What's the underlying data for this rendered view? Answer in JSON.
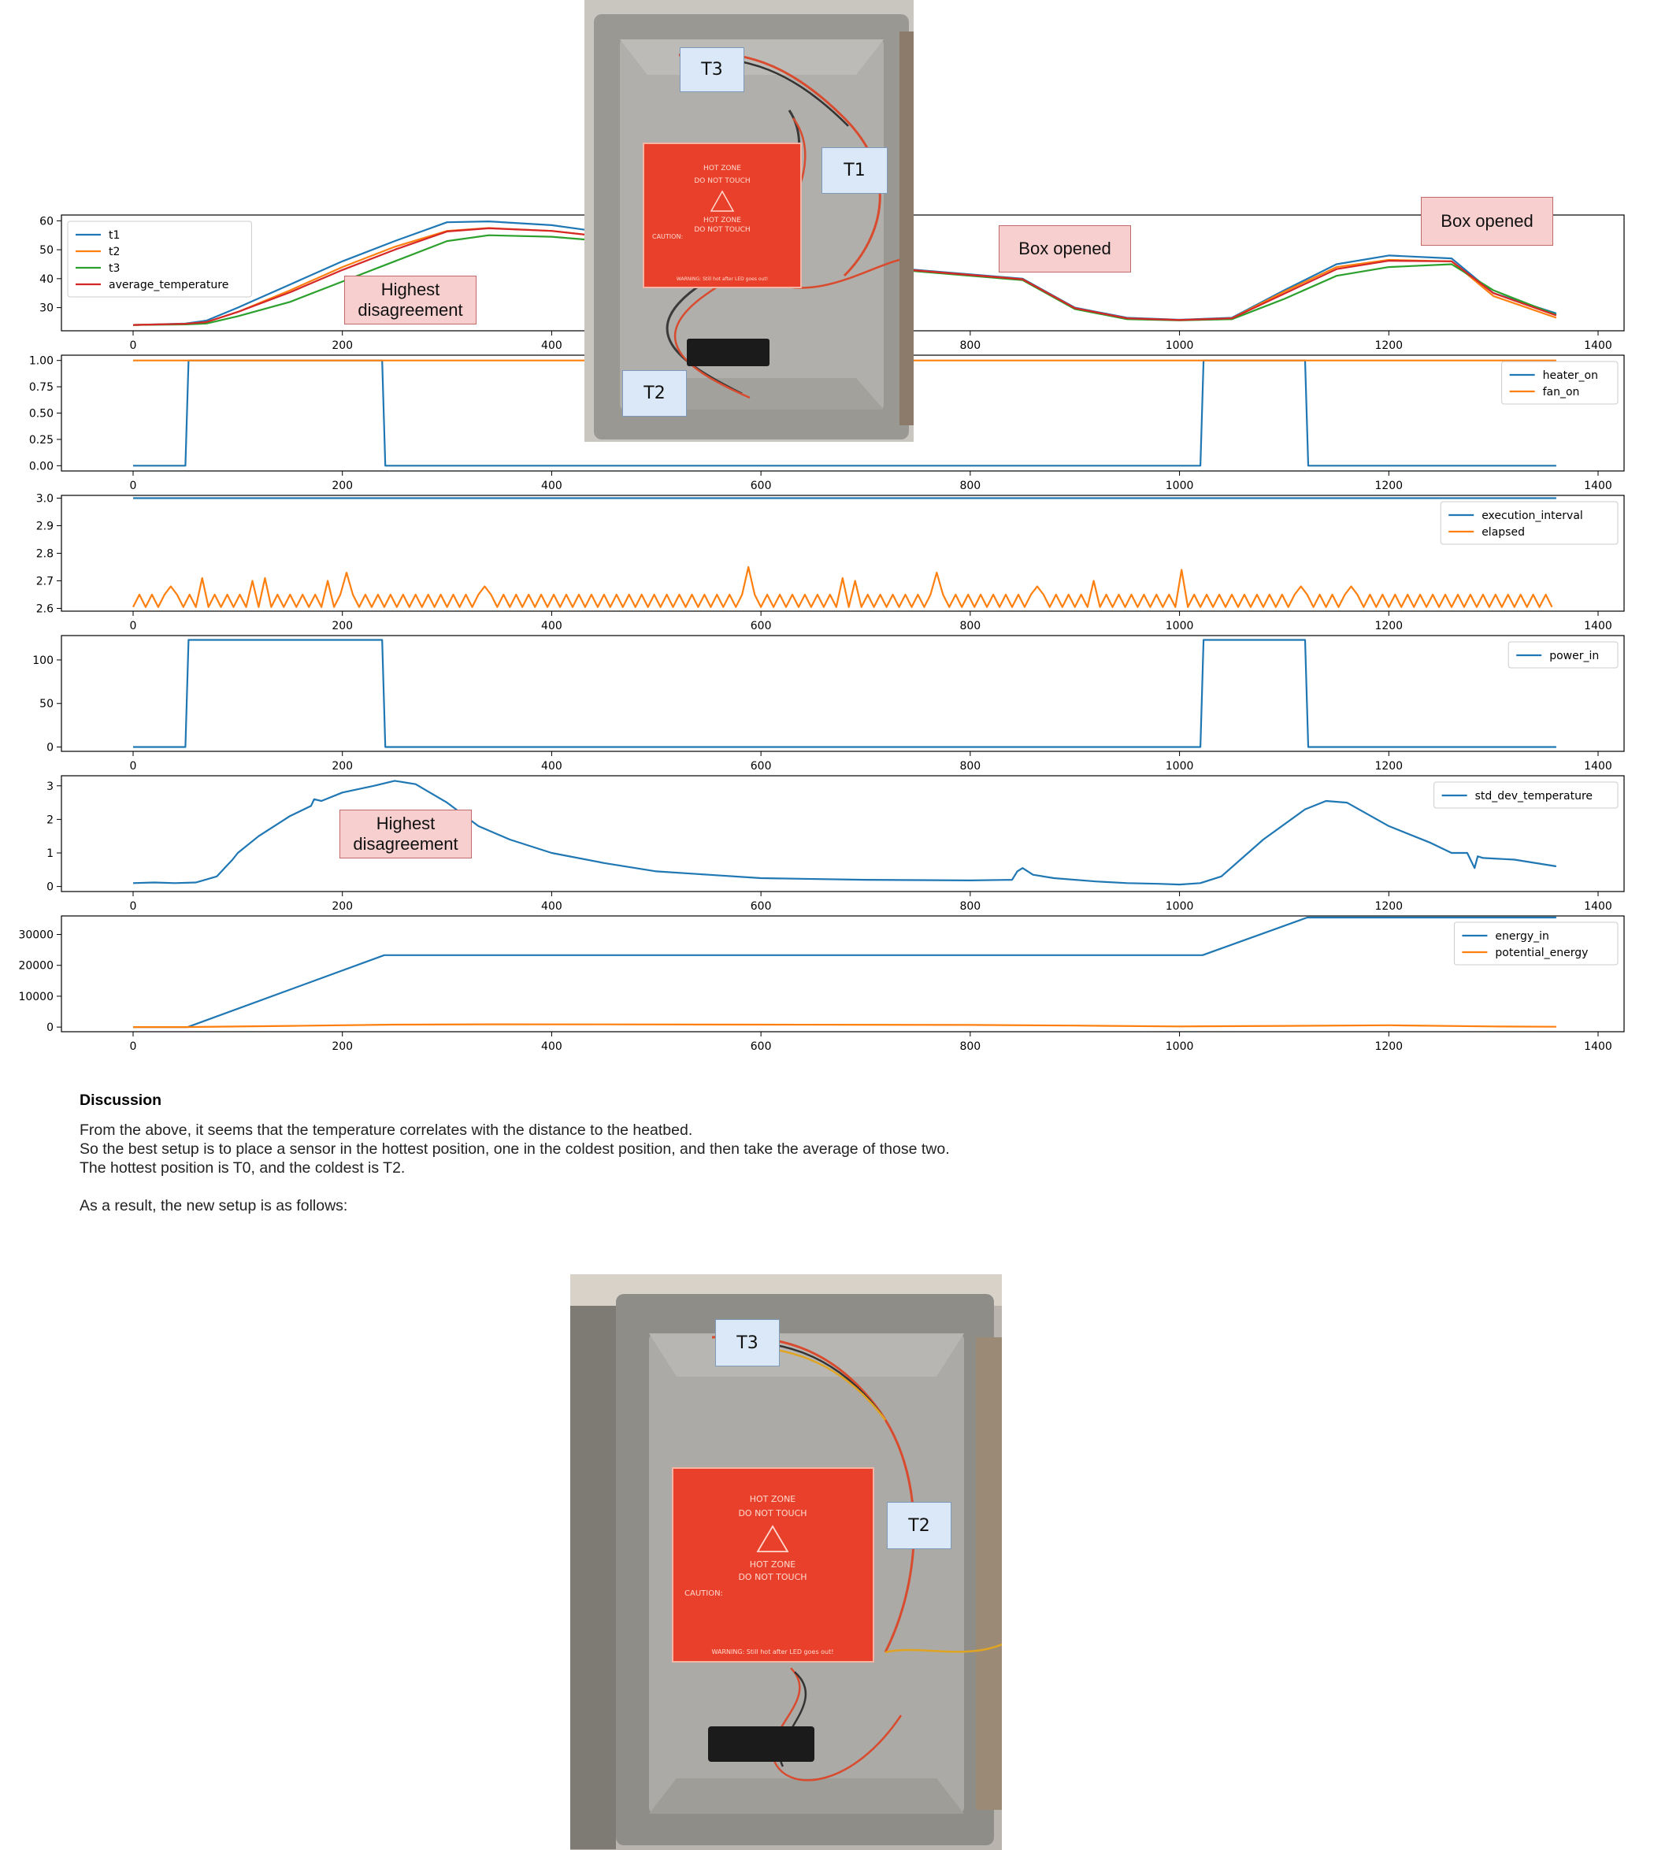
{
  "chart_data": [
    {
      "type": "line",
      "xlim": [
        0,
        1360
      ],
      "ylim": [
        22,
        62
      ],
      "yticks": [
        30,
        40,
        50,
        60
      ],
      "xticks": [
        0,
        200,
        400,
        600,
        800,
        1000,
        1200,
        1400
      ],
      "legend": "upper-left",
      "series": [
        {
          "name": "t1",
          "color": "#1f77b4",
          "x": [
            0,
            50,
            70,
            100,
            150,
            200,
            250,
            300,
            340,
            400,
            450,
            500,
            560,
            600,
            650,
            700,
            750,
            800,
            850,
            900,
            950,
            1000,
            1050,
            1100,
            1150,
            1200,
            1260,
            1300,
            1360
          ],
          "y": [
            24,
            24.5,
            25.5,
            30,
            38,
            46,
            53,
            59.5,
            59.8,
            58.5,
            56,
            53.5,
            50,
            48,
            46.5,
            44.5,
            43,
            41.5,
            40,
            30,
            26.5,
            25.8,
            26.5,
            36,
            45,
            48,
            47,
            35,
            28
          ]
        },
        {
          "name": "t2",
          "color": "#ff7f0e",
          "x": [
            0,
            50,
            70,
            100,
            150,
            200,
            250,
            300,
            340,
            400,
            450,
            500,
            560,
            600,
            650,
            700,
            750,
            800,
            850,
            900,
            950,
            1000,
            1050,
            1100,
            1150,
            1200,
            1260,
            1300,
            1360
          ],
          "y": [
            24,
            24.4,
            25,
            28.5,
            36,
            44,
            51,
            56.5,
            57.5,
            56.5,
            54.5,
            52.5,
            49.5,
            47.8,
            46.2,
            44.3,
            42.8,
            41.3,
            39.8,
            29.8,
            26.3,
            25.7,
            26.3,
            35.5,
            44,
            46.5,
            46,
            34,
            26.5
          ]
        },
        {
          "name": "t3",
          "color": "#2ca02c",
          "x": [
            0,
            50,
            70,
            100,
            150,
            200,
            250,
            300,
            340,
            400,
            450,
            500,
            560,
            600,
            650,
            700,
            750,
            800,
            850,
            900,
            950,
            1000,
            1050,
            1100,
            1150,
            1200,
            1260,
            1300,
            1360
          ],
          "y": [
            24,
            24.2,
            24.5,
            27,
            32,
            39,
            46,
            53,
            55,
            54.5,
            53,
            51,
            48.5,
            47.2,
            45.8,
            44,
            42.5,
            41,
            39.5,
            29.5,
            26,
            25.6,
            26,
            33,
            41,
            44,
            45,
            36,
            27.5
          ]
        },
        {
          "name": "average_temperature",
          "color": "#d62728",
          "x": [
            0,
            50,
            70,
            100,
            150,
            200,
            250,
            300,
            340,
            400,
            450,
            500,
            560,
            600,
            650,
            700,
            750,
            800,
            850,
            900,
            950,
            1000,
            1050,
            1100,
            1150,
            1200,
            1260,
            1300,
            1360
          ],
          "y": [
            24,
            24.4,
            25,
            28.5,
            35.3,
            43,
            50,
            56.3,
            57.4,
            56.5,
            54.5,
            52.3,
            49.3,
            47.7,
            46.2,
            44.3,
            42.8,
            41.3,
            39.8,
            29.8,
            26.3,
            25.7,
            26.3,
            34.8,
            43.3,
            46.2,
            46,
            35,
            27.3
          ]
        }
      ]
    },
    {
      "type": "line",
      "xlim": [
        0,
        1360
      ],
      "ylim": [
        -0.05,
        1.05
      ],
      "yticks": [
        0.0,
        0.25,
        0.5,
        0.75,
        1.0
      ],
      "ytick_labels": [
        "0.00",
        "0.25",
        "0.50",
        "0.75",
        "1.00"
      ],
      "xticks": [
        0,
        200,
        400,
        600,
        800,
        1000,
        1200,
        1400
      ],
      "legend": "upper-right",
      "series": [
        {
          "name": "heater_on",
          "color": "#1f77b4",
          "x": [
            0,
            50,
            53,
            238,
            241,
            1020,
            1023,
            1120,
            1123,
            1360
          ],
          "y": [
            0,
            0,
            1,
            1,
            0,
            0,
            1,
            1,
            0,
            0
          ]
        },
        {
          "name": "fan_on",
          "color": "#ff7f0e",
          "x": [
            0,
            1360
          ],
          "y": [
            1,
            1
          ]
        }
      ]
    },
    {
      "type": "line",
      "xlim": [
        0,
        1360
      ],
      "ylim": [
        2.59,
        3.01
      ],
      "yticks": [
        2.6,
        2.7,
        2.8,
        2.9,
        3.0
      ],
      "ytick_labels": [
        "2.6",
        "2.7",
        "2.8",
        "2.9",
        "3.0"
      ],
      "xticks": [
        0,
        200,
        400,
        600,
        800,
        1000,
        1200,
        1400
      ],
      "legend": "upper-right",
      "series": [
        {
          "name": "execution_interval",
          "color": "#1f77b4",
          "x": [
            0,
            1360
          ],
          "y": [
            3,
            3
          ]
        },
        {
          "name": "elapsed",
          "color": "#ff7f0e",
          "step": 6,
          "base": [
            2.605,
            2.65
          ],
          "spikes": [
            [
              35,
              2.68
            ],
            [
              65,
              2.71
            ],
            [
              115,
              2.7
            ],
            [
              125,
              2.71
            ],
            [
              185,
              2.7
            ],
            [
              206,
              2.73
            ],
            [
              335,
              2.68
            ],
            [
              590,
              2.75
            ],
            [
              678,
              2.71
            ],
            [
              690,
              2.7
            ],
            [
              770,
              2.73
            ],
            [
              865,
              2.68
            ],
            [
              915,
              2.7
            ],
            [
              1000,
              2.74
            ],
            [
              1115,
              2.68
            ],
            [
              1165,
              2.68
            ]
          ]
        }
      ]
    },
    {
      "type": "line",
      "xlim": [
        0,
        1360
      ],
      "ylim": [
        -5,
        128
      ],
      "yticks": [
        0,
        50,
        100
      ],
      "xticks": [
        0,
        200,
        400,
        600,
        800,
        1000,
        1200,
        1400
      ],
      "legend": "upper-right",
      "series": [
        {
          "name": "power_in",
          "color": "#1f77b4",
          "x": [
            0,
            50,
            53,
            238,
            241,
            1020,
            1023,
            1120,
            1123,
            1360
          ],
          "y": [
            0,
            0,
            123,
            123,
            0,
            0,
            123,
            123,
            0,
            0
          ]
        }
      ]
    },
    {
      "type": "line",
      "xlim": [
        0,
        1360
      ],
      "ylim": [
        -0.15,
        3.3
      ],
      "yticks": [
        0,
        1,
        2,
        3
      ],
      "xticks": [
        0,
        200,
        400,
        600,
        800,
        1000,
        1200,
        1400
      ],
      "legend": "upper-right",
      "series": [
        {
          "name": "std_dev_temperature",
          "color": "#1f77b4",
          "x": [
            0,
            20,
            40,
            60,
            80,
            95,
            100,
            120,
            150,
            170,
            173,
            180,
            200,
            230,
            250,
            270,
            300,
            330,
            360,
            400,
            450,
            500,
            550,
            600,
            700,
            800,
            840,
            845,
            850,
            860,
            880,
            920,
            950,
            980,
            1000,
            1020,
            1040,
            1080,
            1120,
            1140,
            1160,
            1200,
            1240,
            1260,
            1275,
            1282,
            1285,
            1290,
            1320,
            1360
          ],
          "y": [
            0.1,
            0.12,
            0.1,
            0.12,
            0.3,
            0.8,
            1.0,
            1.5,
            2.1,
            2.4,
            2.6,
            2.55,
            2.8,
            3.0,
            3.15,
            3.05,
            2.5,
            1.8,
            1.4,
            1.0,
            0.7,
            0.45,
            0.35,
            0.25,
            0.2,
            0.18,
            0.2,
            0.45,
            0.55,
            0.35,
            0.25,
            0.15,
            0.1,
            0.08,
            0.06,
            0.1,
            0.3,
            1.4,
            2.3,
            2.55,
            2.5,
            1.8,
            1.3,
            1.0,
            1.0,
            0.55,
            0.9,
            0.85,
            0.8,
            0.6
          ]
        }
      ]
    },
    {
      "type": "line",
      "xlim": [
        0,
        1360
      ],
      "ylim": [
        -1500,
        36000
      ],
      "yticks": [
        0,
        10000,
        20000,
        30000
      ],
      "xticks": [
        0,
        200,
        400,
        600,
        800,
        1000,
        1200,
        1400
      ],
      "legend": "upper-right",
      "series": [
        {
          "name": "energy_in",
          "color": "#1f77b4",
          "x": [
            0,
            52,
            240,
            1022,
            1122,
            1360
          ],
          "y": [
            0,
            0,
            23300,
            23300,
            35500,
            35500
          ]
        },
        {
          "name": "potential_energy",
          "color": "#ff7f0e",
          "x": [
            0,
            50,
            150,
            250,
            340,
            450,
            600,
            800,
            900,
            1000,
            1100,
            1200,
            1300,
            1360
          ],
          "y": [
            0,
            0,
            400,
            800,
            900,
            880,
            800,
            700,
            500,
            200,
            400,
            600,
            200,
            100
          ]
        }
      ]
    }
  ],
  "photo1": {
    "labels": {
      "t3": "T3",
      "t1": "T1",
      "t2": "T2"
    },
    "bed": {
      "line1": "HOT ZONE",
      "line2": "DO NOT TOUCH",
      "line3": "HOT ZONE",
      "line4": "DO NOT TOUCH",
      "caution": "CAUTION:",
      "warning": "WARNING: Still hot after LED goes out!"
    }
  },
  "notes": {
    "highest_disagreement_top": "Highest disagreement",
    "box_opened_1": "Box opened",
    "box_opened_2": "Box opened",
    "highest_disagreement_std": "Highest disagreement"
  },
  "discussion": {
    "title": "Discussion",
    "line1": "From the above, it seems that the temperature correlates with the distance to the heatbed.",
    "line2": "So the best setup is to place a sensor in the hottest position, one in the coldest position, and then take the average of those two.",
    "line3": "The hottest position is T0, and the coldest is T2.",
    "line4": "As a result, the new setup is as follows:"
  },
  "photo2": {
    "labels": {
      "t3": "T3",
      "t2": "T2"
    },
    "bed": {
      "line1": "HOT ZONE",
      "line2": "DO NOT TOUCH",
      "line3": "HOT ZONE",
      "line4": "DO NOT TOUCH",
      "caution": "CAUTION:",
      "warning": "WARNING: Still hot after LED goes out!"
    }
  }
}
